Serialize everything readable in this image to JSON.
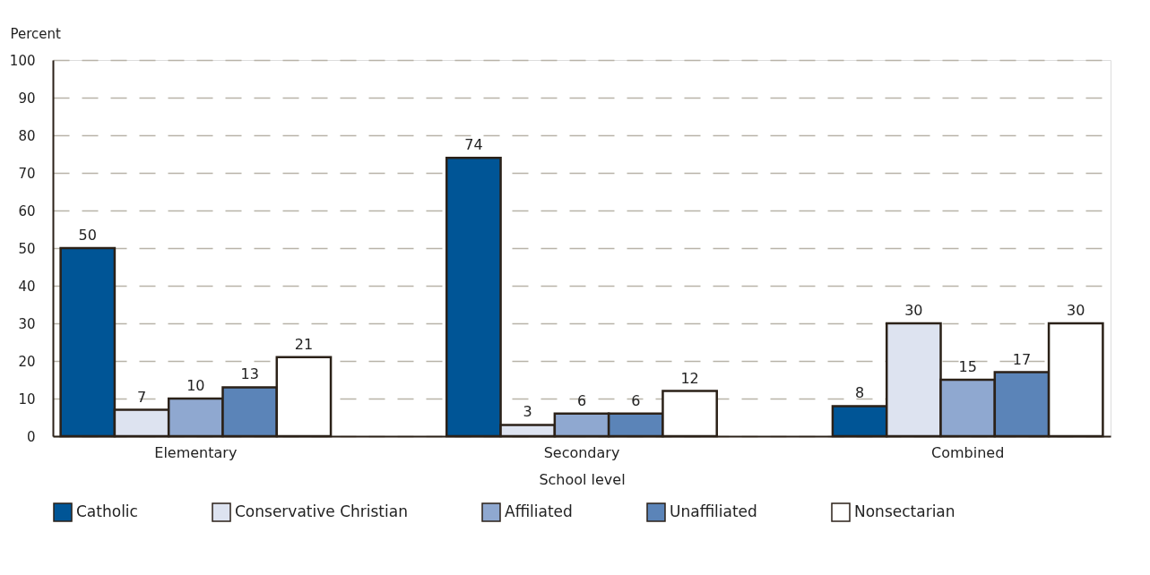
{
  "chart_data": {
    "type": "bar",
    "xlabel": "School level",
    "ylabel": "Percent",
    "categories": [
      "Elementary",
      "Secondary",
      "Combined"
    ],
    "series": [
      {
        "name": "Catholic",
        "color": "#005596",
        "values": [
          50,
          74,
          8
        ]
      },
      {
        "name": "Conservative Christian",
        "color": "#dde3f0",
        "values": [
          7,
          3,
          30
        ]
      },
      {
        "name": "Affiliated",
        "color": "#8fa8d0",
        "values": [
          10,
          6,
          15
        ]
      },
      {
        "name": "Unaffiliated",
        "color": "#5b84b8",
        "values": [
          13,
          6,
          17
        ]
      },
      {
        "name": "Nonsectarian",
        "color": "#ffffff",
        "values": [
          21,
          12,
          30
        ]
      }
    ],
    "ylim": [
      0,
      100
    ],
    "yticks": [
      0,
      10,
      20,
      30,
      40,
      50,
      60,
      70,
      80,
      90,
      100
    ],
    "grid": "y",
    "legend": "bottom",
    "data_labels": true
  }
}
